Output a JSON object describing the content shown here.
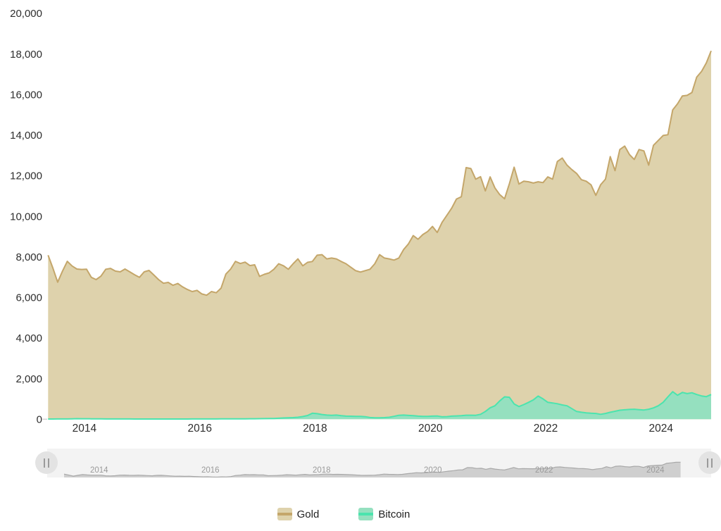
{
  "chart_data": {
    "type": "area",
    "title": "",
    "xlabel": "",
    "ylabel": "",
    "xlim": [
      2013.37,
      2024.87
    ],
    "ylim": [
      0,
      20000
    ],
    "grid": false,
    "legend_position": "bottom",
    "x_start": 2013.37,
    "x_step": 0.0833333,
    "x_ticks": [
      {
        "value": 2014,
        "label": "2014"
      },
      {
        "value": 2016,
        "label": "2016"
      },
      {
        "value": 2018,
        "label": "2018"
      },
      {
        "value": 2020,
        "label": "2020"
      },
      {
        "value": 2022,
        "label": "2022"
      },
      {
        "value": 2024,
        "label": "2024"
      }
    ],
    "y_ticks": [
      {
        "value": 0,
        "label": "0"
      },
      {
        "value": 2000,
        "label": "2,000"
      },
      {
        "value": 4000,
        "label": "4,000"
      },
      {
        "value": 6000,
        "label": "6,000"
      },
      {
        "value": 8000,
        "label": "8,000"
      },
      {
        "value": 10000,
        "label": "10,000"
      },
      {
        "value": 12000,
        "label": "12,000"
      },
      {
        "value": 14000,
        "label": "14,000"
      },
      {
        "value": 16000,
        "label": "16,000"
      },
      {
        "value": 18000,
        "label": "18,000"
      },
      {
        "value": 20000,
        "label": "20,000"
      }
    ],
    "series": [
      {
        "name": "Gold",
        "line_color": "#C4A66A",
        "fill_color": "#DED2AC",
        "values": [
          8080,
          7450,
          6750,
          7300,
          7780,
          7550,
          7400,
          7380,
          7390,
          6990,
          6880,
          7050,
          7390,
          7430,
          7300,
          7260,
          7400,
          7260,
          7120,
          6990,
          7260,
          7330,
          7110,
          6880,
          6700,
          6740,
          6600,
          6690,
          6520,
          6390,
          6290,
          6350,
          6170,
          6110,
          6290,
          6230,
          6460,
          7150,
          7400,
          7780,
          7670,
          7740,
          7570,
          7610,
          7040,
          7140,
          7210,
          7390,
          7660,
          7560,
          7390,
          7660,
          7900,
          7560,
          7730,
          7770,
          8080,
          8110,
          7900,
          7940,
          7900,
          7770,
          7660,
          7490,
          7320,
          7250,
          7320,
          7390,
          7660,
          8110,
          7940,
          7900,
          7840,
          7940,
          8360,
          8640,
          9050,
          8870,
          9100,
          9250,
          9500,
          9200,
          9700,
          10050,
          10400,
          10850,
          10960,
          12400,
          12350,
          11830,
          11950,
          11250,
          11940,
          11400,
          11070,
          10860,
          11600,
          12420,
          11590,
          11730,
          11700,
          11640,
          11700,
          11660,
          11940,
          11830,
          12700,
          12870,
          12520,
          12300,
          12110,
          11800,
          11730,
          11550,
          11030,
          11550,
          11830,
          12940,
          12250,
          13290,
          13460,
          13040,
          12800,
          13290,
          13220,
          12520,
          13500,
          13740,
          13980,
          14020,
          15240,
          15540,
          15930,
          15960,
          16100,
          16860,
          17140,
          17560,
          18150
        ]
      },
      {
        "name": "Bitcoin",
        "line_color": "#4BE4AE",
        "fill_color": "#95E0BF",
        "values": [
          8,
          8,
          9,
          10,
          12,
          18,
          25,
          22,
          20,
          18,
          15,
          13,
          12,
          12,
          12,
          11,
          10,
          9,
          8,
          8,
          6,
          6,
          6,
          6,
          6,
          6,
          7,
          7,
          7,
          8,
          9,
          10,
          10,
          11,
          11,
          12,
          13,
          15,
          15,
          16,
          17,
          18,
          20,
          22,
          25,
          28,
          30,
          35,
          45,
          60,
          65,
          75,
          95,
          130,
          180,
          290,
          270,
          230,
          200,
          190,
          200,
          170,
          150,
          145,
          140,
          140,
          120,
          80,
          70,
          70,
          75,
          95,
          140,
          190,
          200,
          185,
          170,
          150,
          140,
          135,
          150,
          155,
          115,
          125,
          150,
          160,
          170,
          195,
          195,
          190,
          240,
          380,
          560,
          660,
          900,
          1100,
          1080,
          750,
          620,
          720,
          830,
          950,
          1140,
          1000,
          830,
          800,
          760,
          700,
          660,
          520,
          380,
          340,
          310,
          290,
          280,
          240,
          280,
          340,
          390,
          440,
          460,
          480,
          490,
          470,
          450,
          490,
          555,
          660,
          830,
          1100,
          1355,
          1180,
          1320,
          1260,
          1300,
          1215,
          1145,
          1110,
          1215
        ]
      }
    ]
  },
  "navigator": {
    "track_color": "#F3F3F3",
    "preview_fill": "#CFCFCF",
    "preview_line": "#A8A8A8",
    "label_color": "#9A9A9A",
    "preview_end_year": 2024.46,
    "x_ticks": [
      {
        "value": 2014,
        "label": "2014"
      },
      {
        "value": 2016,
        "label": "2016"
      },
      {
        "value": 2018,
        "label": "2018"
      },
      {
        "value": 2020,
        "label": "2020"
      },
      {
        "value": 2022,
        "label": "2022"
      },
      {
        "value": 2024,
        "label": "2024"
      }
    ]
  },
  "legend": {
    "items": [
      {
        "label": "Gold"
      },
      {
        "label": "Bitcoin"
      }
    ]
  }
}
